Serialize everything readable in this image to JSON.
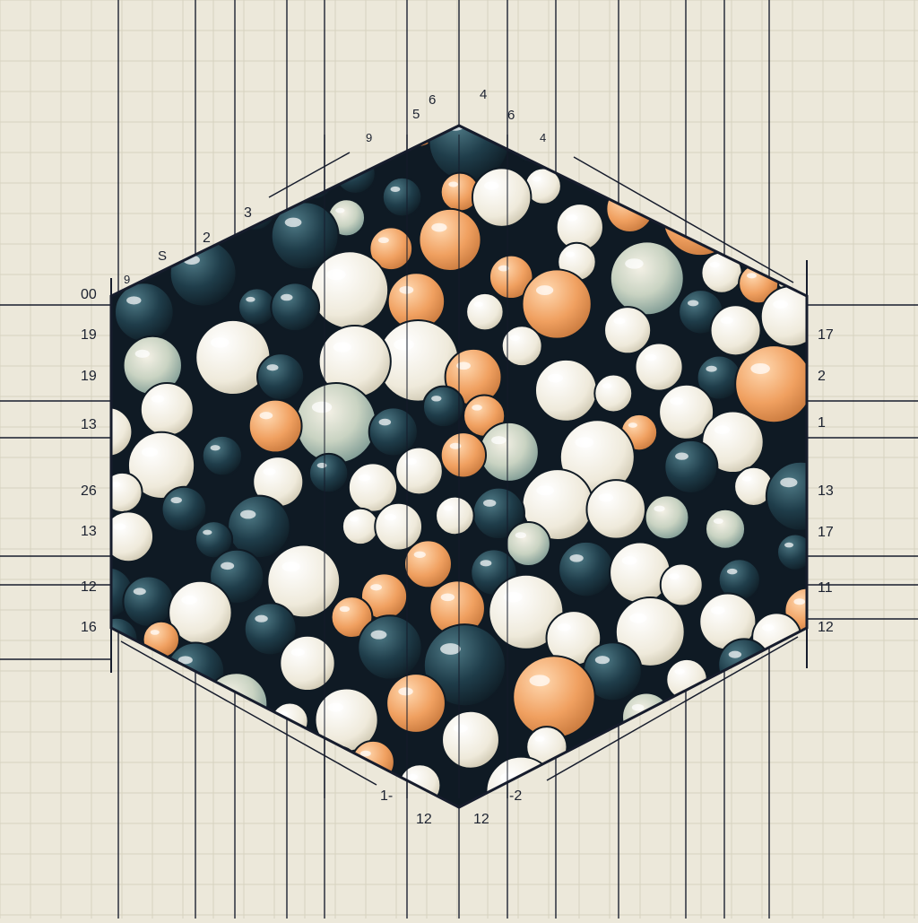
{
  "colors": {
    "paper": "#ece8da",
    "grid": "#c9c6b4",
    "ink": "#161c2c",
    "sphere_white": "#f4f1e6",
    "sphere_dark": "#1f3d4a",
    "sphere_orange": "#f0a060",
    "sphere_marble": "#c9d3c2"
  },
  "labels": {
    "top": [
      "5",
      "6",
      "4",
      "6",
      "4",
      "9",
      "3",
      "2",
      "9",
      "S"
    ],
    "left": [
      "00",
      "19",
      "19",
      "13",
      "26",
      "13",
      "12",
      "16"
    ],
    "right": [
      "17",
      "2",
      "1",
      "13",
      "17",
      "11",
      "12"
    ],
    "bottom": [
      "1-",
      "12",
      "12",
      "-2"
    ]
  },
  "sphere_palette": [
    "sphere_white",
    "sphere_dark",
    "sphere_orange",
    "sphere_marble"
  ]
}
